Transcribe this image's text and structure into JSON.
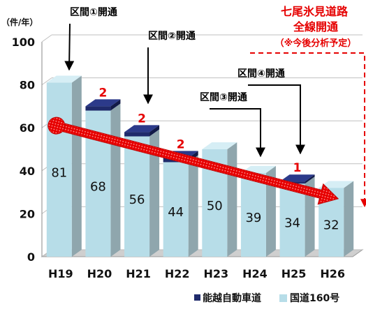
{
  "chart_data": {
    "type": "bar",
    "unit_label": "（件/年）",
    "categories": [
      "H19",
      "H20",
      "H21",
      "H22",
      "H23",
      "H24",
      "H25",
      "H26"
    ],
    "ylim": [
      0,
      100
    ],
    "yticks": [
      0,
      20,
      40,
      60,
      80,
      100
    ],
    "grid": true,
    "legend_position": "bottom-right",
    "stacked": true,
    "series": [
      {
        "name": "国道160号",
        "color": "#b7dde8",
        "values": [
          81,
          68,
          56,
          44,
          50,
          39,
          34,
          32
        ]
      },
      {
        "name": "能越自動車道",
        "color": "#1f2a6b",
        "values": [
          0,
          2,
          2,
          2,
          0,
          0,
          1,
          0
        ]
      }
    ],
    "trend": {
      "from": "H19",
      "to": "H26",
      "color": "#e60000"
    },
    "annotations": [
      {
        "text": "区間①開通",
        "category": "H19"
      },
      {
        "text": "区間②開通",
        "category": "H21"
      },
      {
        "text": "区間③開通",
        "category": "H24"
      },
      {
        "text": "区間④開通",
        "category": "H25"
      }
    ],
    "callout": {
      "lines": [
        "七尾氷見道路",
        "全線開通",
        "（※今後分析予定）"
      ],
      "color": "#e60000"
    }
  }
}
